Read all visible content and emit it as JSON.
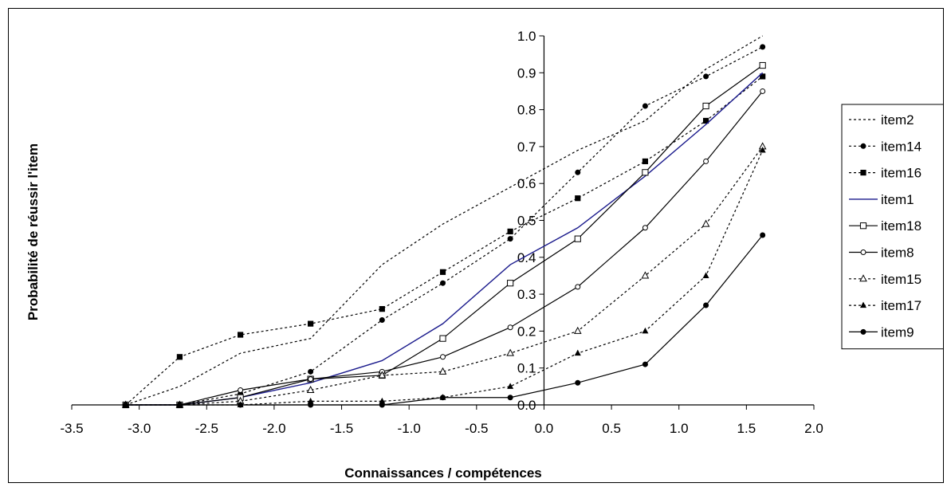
{
  "chart_data": {
    "type": "line",
    "title": "",
    "xlabel": "Connaissances / compétences",
    "ylabel": "Probabilité de réussir l'item",
    "xlim": [
      -3.5,
      2.0
    ],
    "ylim": [
      0.0,
      1.0
    ],
    "x_ticks": [
      "-3.5",
      "-3.0",
      "-2.5",
      "-2.0",
      "-1.5",
      "-1.0",
      "-0.5",
      "0.0",
      "0.5",
      "1.0",
      "1.5",
      "2.0"
    ],
    "y_ticks": [
      "0.0",
      "0.1",
      "0.2",
      "0.3",
      "0.4",
      "0.5",
      "0.6",
      "0.7",
      "0.8",
      "0.9",
      "1.0"
    ],
    "grid": false,
    "legend_position": "right",
    "x": [
      -3.1,
      -2.7,
      -2.25,
      -1.73,
      -1.2,
      -0.75,
      -0.25,
      0.25,
      0.75,
      1.2,
      1.62
    ],
    "series": [
      {
        "name": "item2",
        "style": "dotted",
        "marker": "none",
        "values": [
          0.0,
          0.05,
          0.14,
          0.18,
          0.38,
          0.49,
          0.59,
          0.69,
          0.77,
          0.91,
          1.0
        ]
      },
      {
        "name": "item14",
        "style": "dotted",
        "marker": "filled-circle",
        "values": [
          0.0,
          0.0,
          0.03,
          0.09,
          0.23,
          0.33,
          0.45,
          0.63,
          0.81,
          0.89,
          0.97
        ]
      },
      {
        "name": "item16",
        "style": "dotted",
        "marker": "filled-square",
        "values": [
          0.0,
          0.13,
          0.19,
          0.22,
          0.26,
          0.36,
          0.47,
          0.56,
          0.66,
          0.77,
          0.89
        ]
      },
      {
        "name": "item1",
        "style": "solid",
        "marker": "none",
        "color": "#1a1a8c",
        "values": [
          0.0,
          0.0,
          0.02,
          0.06,
          0.12,
          0.22,
          0.38,
          0.48,
          0.62,
          0.76,
          0.9
        ]
      },
      {
        "name": "item18",
        "style": "solid",
        "marker": "open-square",
        "values": [
          0.0,
          0.0,
          0.02,
          0.07,
          0.08,
          0.18,
          0.33,
          0.45,
          0.63,
          0.81,
          0.92
        ]
      },
      {
        "name": "item8",
        "style": "solid",
        "marker": "open-circle",
        "values": [
          0.0,
          0.0,
          0.04,
          0.07,
          0.09,
          0.13,
          0.21,
          0.32,
          0.48,
          0.66,
          0.85
        ]
      },
      {
        "name": "item15",
        "style": "dotted",
        "marker": "open-triangle",
        "values": [
          0.0,
          0.0,
          0.01,
          0.04,
          0.08,
          0.09,
          0.14,
          0.2,
          0.35,
          0.49,
          0.7
        ]
      },
      {
        "name": "item17",
        "style": "dotted",
        "marker": "filled-triangle",
        "values": [
          0.0,
          0.0,
          0.0,
          0.01,
          0.01,
          0.02,
          0.05,
          0.14,
          0.2,
          0.35,
          0.69
        ]
      },
      {
        "name": "item9",
        "style": "solid",
        "marker": "filled-circle",
        "values": [
          0.0,
          0.0,
          0.0,
          0.0,
          0.0,
          0.02,
          0.02,
          0.06,
          0.11,
          0.27,
          0.46
        ]
      }
    ]
  }
}
